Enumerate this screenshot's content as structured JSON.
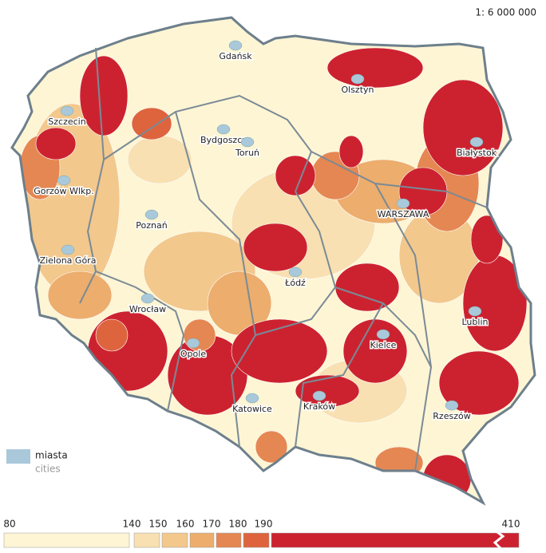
{
  "map_scale": "1: 6 000 000",
  "cities": [
    "Gdańsk",
    "Olsztyn",
    "Szczecin",
    "Białystok",
    "Bydgoszcz",
    "Toruń",
    "Gorzów Wlkp.",
    "WARSZAWA",
    "Poznań",
    "Zielona Góra",
    "Łódź",
    "Lublin",
    "Wrocław",
    "Kielce",
    "Opole",
    "Katowice",
    "Kraków",
    "Rzeszów"
  ],
  "legend": {
    "cities_label": "miasta",
    "cities_label_en": "cities",
    "city_color": "#a9c8da"
  },
  "color_scale": {
    "breaks": [
      80,
      140,
      150,
      160,
      170,
      180,
      190,
      410
    ],
    "colors": [
      "#fdf5d4",
      "#f8e0b2",
      "#f2c88d",
      "#ecad6d",
      "#e58752",
      "#de643e",
      "#cc2230"
    ]
  }
}
